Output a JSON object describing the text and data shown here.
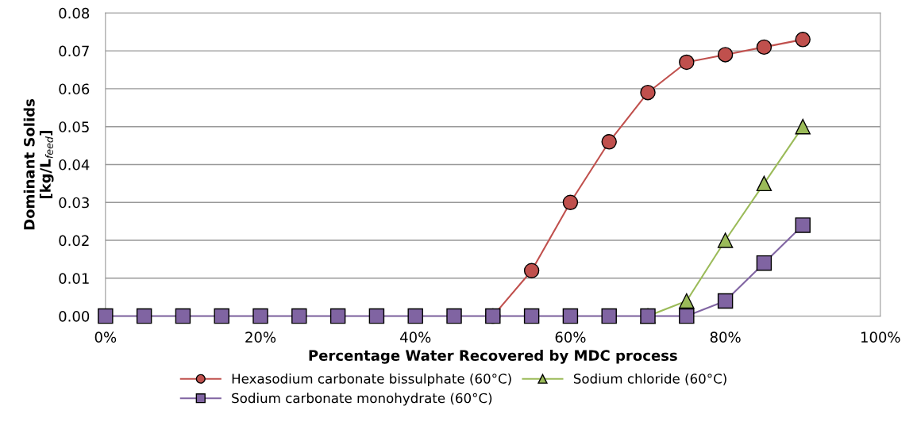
{
  "chart_data": {
    "type": "line",
    "xlabel": "Percentage Water Recovered by MDC process",
    "ylabel": "Dominant Solids\n[kg/L$_{feed}$]",
    "x": [
      0,
      5,
      10,
      15,
      20,
      25,
      30,
      35,
      40,
      45,
      50,
      55,
      60,
      65,
      70,
      75,
      80,
      85,
      90
    ],
    "series": [
      {
        "name": "Hexasodium carbonate bissulphate (60°C)",
        "color": "#c0504d",
        "marker": "circle",
        "values": [
          null,
          null,
          null,
          null,
          null,
          null,
          null,
          null,
          null,
          null,
          0,
          0.012,
          0.03,
          0.046,
          0.059,
          0.067,
          0.069,
          0.071,
          0.073
        ]
      },
      {
        "name": "Sodium chloride (60°C)",
        "color": "#9bbb59",
        "marker": "triangle",
        "values": [
          null,
          null,
          null,
          null,
          null,
          null,
          null,
          null,
          null,
          null,
          null,
          null,
          null,
          null,
          0,
          0.004,
          0.02,
          0.035,
          0.05
        ]
      },
      {
        "name": "Sodium carbonate monohydrate (60°C)",
        "color": "#8064a2",
        "marker": "square",
        "values": [
          0,
          0,
          0,
          0,
          0,
          0,
          0,
          0,
          0,
          0,
          0,
          0,
          0,
          0,
          0,
          0,
          0.004,
          0.014,
          0.024
        ]
      }
    ],
    "xlim": [
      0,
      100
    ],
    "xticks": [
      {
        "value": 0,
        "label": "0%"
      },
      {
        "value": 20,
        "label": "20%"
      },
      {
        "value": 40,
        "label": "40%"
      },
      {
        "value": 60,
        "label": "60%"
      },
      {
        "value": 80,
        "label": "80%"
      },
      {
        "value": 100,
        "label": "100%"
      }
    ],
    "ylim": [
      0,
      0.08
    ],
    "yticks": [
      {
        "value": 0,
        "label": "0.00"
      },
      {
        "value": 0.01,
        "label": "0.01"
      },
      {
        "value": 0.02,
        "label": "0.02"
      },
      {
        "value": 0.03,
        "label": "0.03"
      },
      {
        "value": 0.04,
        "label": "0.04"
      },
      {
        "value": 0.05,
        "label": "0.05"
      },
      {
        "value": 0.06,
        "label": "0.06"
      },
      {
        "value": 0.07,
        "label": "0.07"
      },
      {
        "value": 0.08,
        "label": "0.08"
      }
    ],
    "grid": "y",
    "legend": "bottom"
  }
}
